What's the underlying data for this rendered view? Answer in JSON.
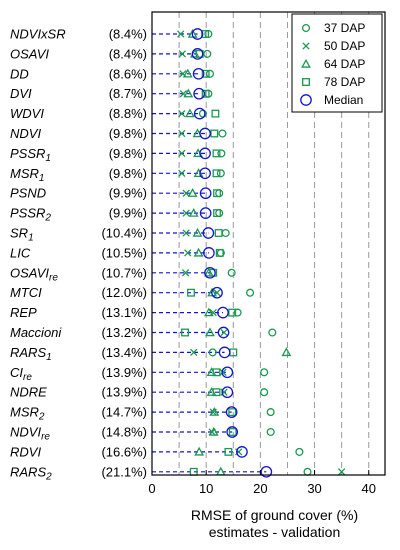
{
  "chart_data": {
    "type": "scatter",
    "xlabel": [
      "RMSE of ground cover (%)",
      "estimates - validation"
    ],
    "xlim": [
      0,
      43
    ],
    "xticks": [
      0,
      10,
      20,
      30,
      40
    ],
    "xtick_labels": [
      "0",
      "10",
      "20",
      "30",
      "40"
    ],
    "grid_x": [
      5,
      10,
      15,
      20,
      25,
      30,
      35,
      40
    ],
    "legend_position": "top-right",
    "colors": {
      "green": "#1a9a50",
      "blue": "#1414d2"
    },
    "legend": [
      {
        "label": "37 DAP",
        "marker": "circle",
        "color": "#1a9a50"
      },
      {
        "label": "50 DAP",
        "marker": "x",
        "color": "#1a9a50"
      },
      {
        "label": "64 DAP",
        "marker": "triangle",
        "color": "#1a9a50"
      },
      {
        "label": "78 DAP",
        "marker": "square",
        "color": "#1a9a50"
      },
      {
        "label": "Median",
        "marker": "circle-large",
        "color": "#1414d2"
      }
    ],
    "indices": [
      {
        "name": "NDVIxSR",
        "sub": "",
        "pct": "(8.4%)",
        "dap37": 10.4,
        "dap50": 5.3,
        "dap64": 7.5,
        "dap78": 9.8,
        "median": 8.4
      },
      {
        "name": "OSAVI",
        "sub": "",
        "pct": "(8.4%)",
        "dap37": 10.2,
        "dap50": 5.6,
        "dap64": 7.9,
        "dap78": 8.8,
        "median": 8.4
      },
      {
        "name": "DD",
        "sub": "",
        "pct": "(8.6%)",
        "dap37": 10.7,
        "dap50": 5.7,
        "dap64": 6.6,
        "dap78": 9.9,
        "median": 8.6
      },
      {
        "name": "DVI",
        "sub": "",
        "pct": "(8.7%)",
        "dap37": 10.4,
        "dap50": 5.8,
        "dap64": 6.7,
        "dap78": 9.9,
        "median": 8.7
      },
      {
        "name": "WDVI",
        "sub": "",
        "pct": "(8.8%)",
        "dap37": 9.4,
        "dap50": 5.5,
        "dap64": 7.0,
        "dap78": 11.7,
        "median": 8.8
      },
      {
        "name": "NDVI",
        "sub": "",
        "pct": "(9.8%)",
        "dap37": 13.0,
        "dap50": 5.5,
        "dap64": 8.4,
        "dap78": 11.5,
        "median": 9.8
      },
      {
        "name": "PSSR",
        "sub": "1",
        "pct": "(9.8%)",
        "dap37": 12.8,
        "dap50": 5.5,
        "dap64": 8.5,
        "dap78": 11.9,
        "median": 9.8
      },
      {
        "name": "MSR",
        "sub": "1",
        "pct": "(9.8%)",
        "dap37": 12.7,
        "dap50": 5.5,
        "dap64": 8.6,
        "dap78": 11.9,
        "median": 9.8
      },
      {
        "name": "PSND",
        "sub": "",
        "pct": "(9.9%)",
        "dap37": 12.4,
        "dap50": 6.3,
        "dap64": 7.5,
        "dap78": 12.0,
        "median": 9.9
      },
      {
        "name": "PSSR",
        "sub": "2",
        "pct": "(9.9%)",
        "dap37": 12.4,
        "dap50": 6.3,
        "dap64": 7.7,
        "dap78": 12.0,
        "median": 9.9
      },
      {
        "name": "SR",
        "sub": "1",
        "pct": "(10.4%)",
        "dap37": 13.6,
        "dap50": 6.3,
        "dap64": 8.4,
        "dap78": 12.3,
        "median": 10.4
      },
      {
        "name": "LIC",
        "sub": "",
        "pct": "(10.5%)",
        "dap37": 12.7,
        "dap50": 6.6,
        "dap64": 8.6,
        "dap78": 12.5,
        "median": 10.5
      },
      {
        "name": "OSAVI",
        "sub": "re",
        "pct": "(10.7%)",
        "dap37": 14.7,
        "dap50": 6.2,
        "dap64": 10.5,
        "dap78": 11.3,
        "median": 10.7
      },
      {
        "name": "MTCI",
        "sub": "",
        "pct": "(12.0%)",
        "dap37": 18.1,
        "dap50": 12.0,
        "dap64": 11.1,
        "dap78": 7.2,
        "median": 12.0
      },
      {
        "name": "REP",
        "sub": "",
        "pct": "(13.1%)",
        "dap37": 15.8,
        "dap50": 11.3,
        "dap64": 10.5,
        "dap78": 14.8,
        "median": 13.1
      },
      {
        "name": "Maccioni",
        "sub": "",
        "pct": "(13.2%)",
        "dap37": 22.2,
        "dap50": 13.3,
        "dap64": 10.7,
        "dap78": 6.1,
        "median": 13.2
      },
      {
        "name": "RARS",
        "sub": "1",
        "pct": "(13.4%)",
        "dap37": 11.2,
        "dap50": 7.7,
        "dap64": 24.8,
        "dap78": 15.0,
        "median": 13.4
      },
      {
        "name": "CI",
        "sub": "re",
        "pct": "(13.9%)",
        "dap37": 20.7,
        "dap50": 13.1,
        "dap64": 11.0,
        "dap78": 11.9,
        "median": 13.9
      },
      {
        "name": "NDRE",
        "sub": "",
        "pct": "(13.9%)",
        "dap37": 20.7,
        "dap50": 13.3,
        "dap64": 11.0,
        "dap78": 11.9,
        "median": 13.9
      },
      {
        "name": "MSR",
        "sub": "2",
        "pct": "(14.7%)",
        "dap37": 21.9,
        "dap50": 11.3,
        "dap64": 11.5,
        "dap78": 14.8,
        "median": 14.7
      },
      {
        "name": "NDVI",
        "sub": "re",
        "pct": "(14.8%)",
        "dap37": 21.9,
        "dap50": 11.1,
        "dap64": 11.4,
        "dap78": 14.9,
        "median": 14.8
      },
      {
        "name": "RDVI",
        "sub": "",
        "pct": "(16.6%)",
        "dap37": 27.2,
        "dap50": 16.0,
        "dap64": 8.7,
        "dap78": 14.1,
        "median": 16.6
      },
      {
        "name": "RARS",
        "sub": "2",
        "pct": "(21.1%)",
        "dap37": 28.7,
        "dap50": 35.0,
        "dap64": 12.7,
        "dap78": 7.7,
        "median": 21.1
      }
    ]
  }
}
